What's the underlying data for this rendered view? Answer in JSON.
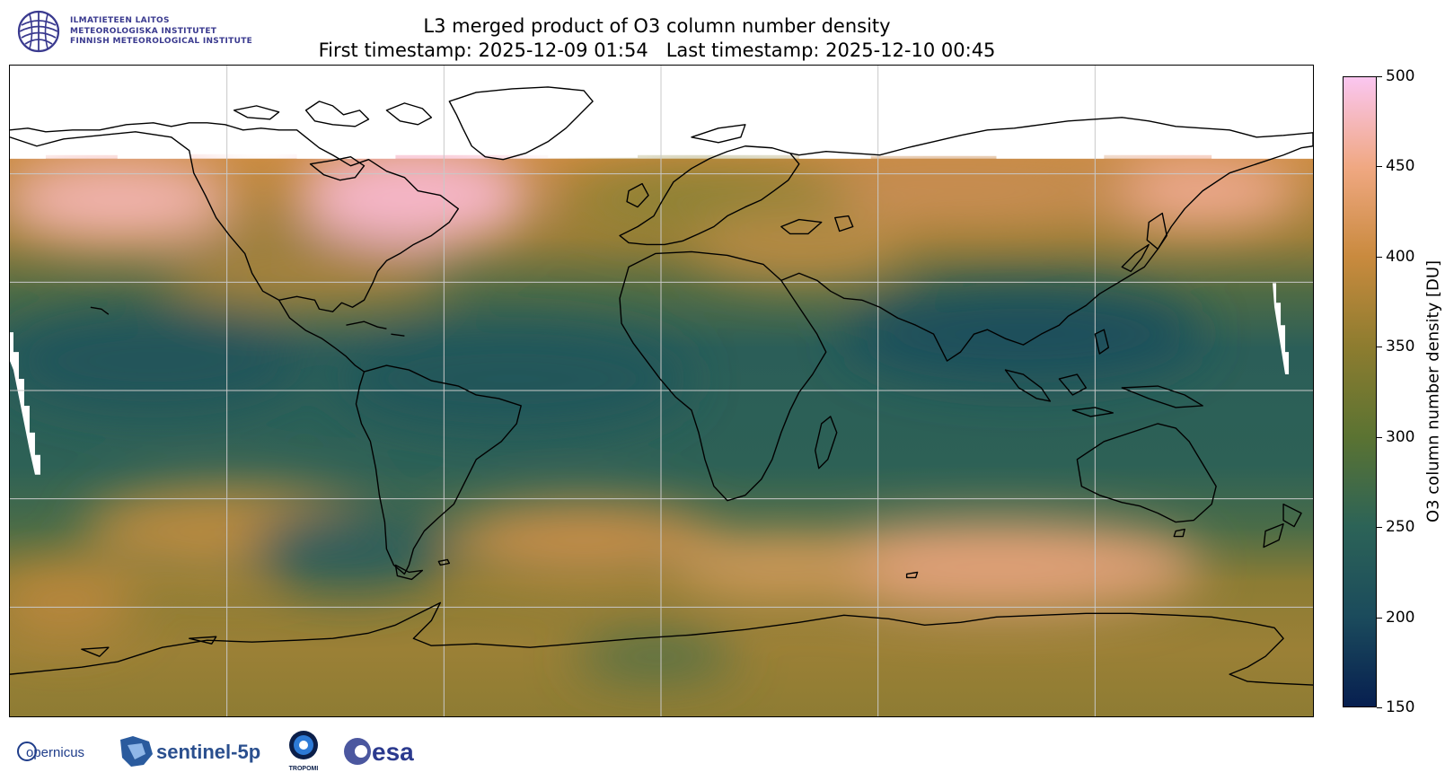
{
  "header": {
    "institute_lines": [
      "ILMATIETEEN LAITOS",
      "METEOROLOGISKA INSTITUTET",
      "FINNISH METEOROLOGICAL INSTITUTE"
    ],
    "title_line1": "L3 merged product of O3 column number density",
    "title_line2": "First timestamp: 2025-12-09 01:54   Last timestamp: 2025-12-10 00:45"
  },
  "colorbar": {
    "label": "O3 column number density [DU]",
    "ticks": [
      "500",
      "450",
      "400",
      "350",
      "300",
      "250",
      "200",
      "150"
    ],
    "min": 150,
    "max": 500,
    "colors": [
      "#071f50",
      "#1b4b5c",
      "#2c6357",
      "#5b7332",
      "#8d7c2f",
      "#c98a3e",
      "#f0a882",
      "#fac6f0"
    ]
  },
  "map": {
    "projection": "plate-carree",
    "gridlines": true,
    "coastlines": true
  },
  "logos": {
    "copernicus": "opernicus",
    "sentinel": "sentinel-5p",
    "tropomi": "TROPOMI",
    "esa": "esa"
  }
}
